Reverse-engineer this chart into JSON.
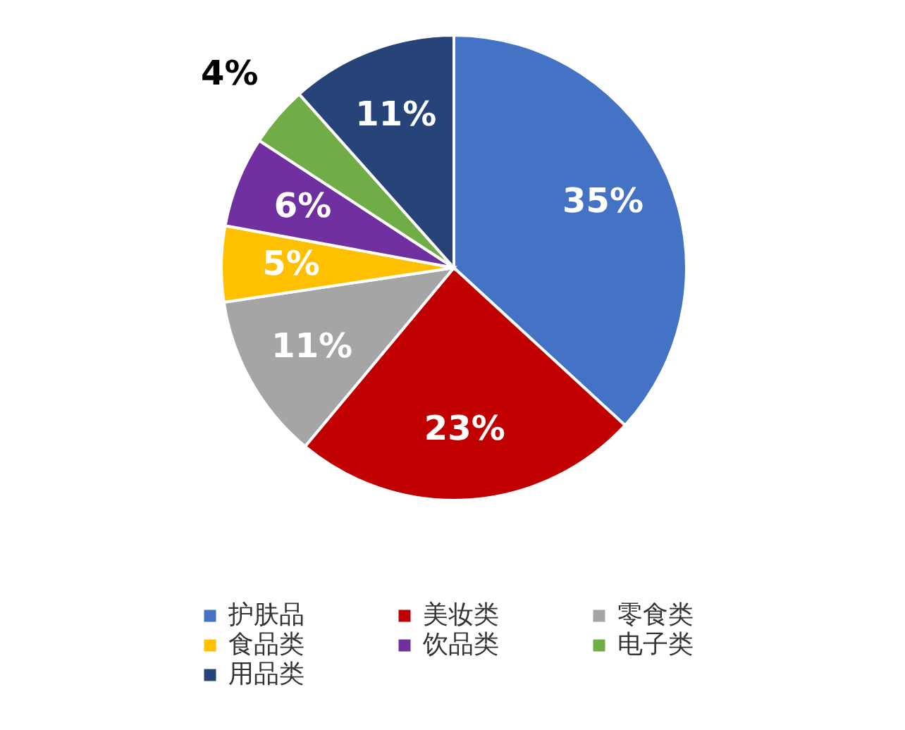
{
  "chart_data": {
    "type": "pie",
    "categories": [
      "护肤品",
      "美妆类",
      "零食类",
      "食品类",
      "饮品类",
      "电子类",
      "用品类"
    ],
    "values": [
      35,
      23,
      11,
      5,
      6,
      4,
      11
    ],
    "value_labels": [
      "35%",
      "23%",
      "11%",
      "5%",
      "6%",
      "4%",
      "11%"
    ],
    "colors": [
      "#4472c4",
      "#c00000",
      "#a5a5a5",
      "#ffc000",
      "#7030a0",
      "#70ad47",
      "#264478"
    ],
    "legend": "bottom"
  }
}
